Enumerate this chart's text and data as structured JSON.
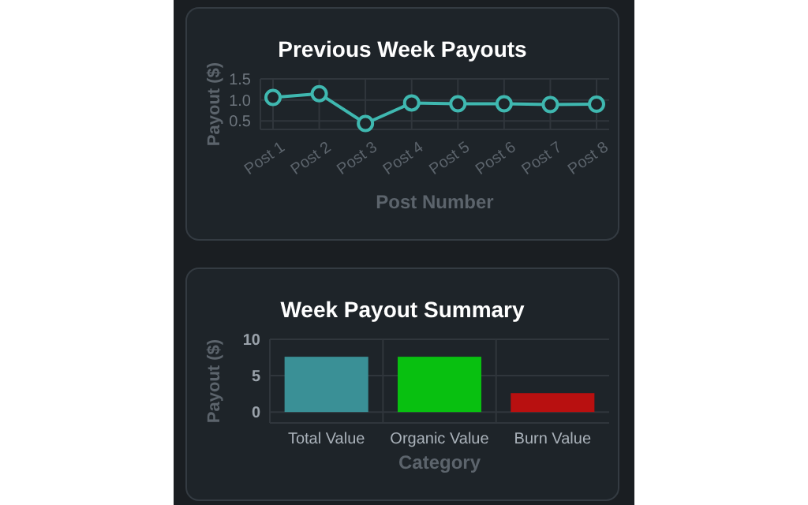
{
  "chart_data": [
    {
      "type": "line",
      "title": "Previous Week Payouts",
      "xlabel": "Post Number",
      "ylabel": "Payout ($)",
      "categories": [
        "Post 1",
        "Post 2",
        "Post 3",
        "Post 4",
        "Post 5",
        "Post 6",
        "Post 7",
        "Post 8"
      ],
      "series": [
        {
          "color": "#3fb8b0",
          "values": [
            1.06,
            1.15,
            0.44,
            0.93,
            0.91,
            0.91,
            0.89,
            0.9
          ]
        }
      ],
      "ylim": [
        0.3,
        1.5
      ],
      "yticks": [
        {
          "value": 0.5,
          "label": "0.5"
        },
        {
          "value": 1,
          "label": "1.0"
        },
        {
          "value": 1.5,
          "label": "1.5"
        }
      ],
      "grid": true,
      "marker": "circle",
      "line_style": "solid"
    },
    {
      "type": "bar",
      "title": "Week Payout Summary",
      "xlabel": "Category",
      "ylabel": "Payout ($)",
      "categories": [
        "Total Value",
        "Organic Value",
        "Burn Value"
      ],
      "values": [
        7.6,
        7.6,
        2.6
      ],
      "colors": [
        "#3a9096",
        "#08c010",
        "#b81010"
      ],
      "ylim": [
        -1.5,
        10
      ],
      "yticks": [
        0,
        5,
        10
      ],
      "grid": true
    }
  ]
}
